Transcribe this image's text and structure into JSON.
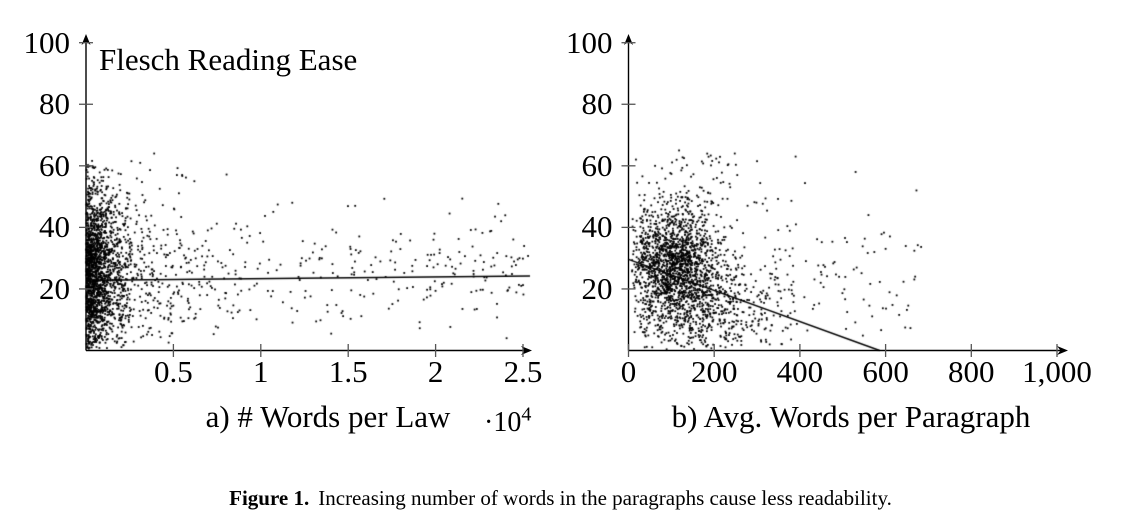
{
  "page": {
    "background": "#ffffff",
    "text_color": "#000000"
  },
  "figure": {
    "caption_label": "Figure 1.",
    "caption_text": "Increasing number of words in the paragraphs cause less readability."
  },
  "chart_data": [
    {
      "type": "scatter",
      "panel": "a",
      "title": "Flesch Reading Ease",
      "xlabel": "a) # Words per Law",
      "ylabel": "Flesch Reading Ease",
      "x_axis_multiplier": {
        "base": "·10",
        "exp": "4"
      },
      "xlim": [
        0,
        25500
      ],
      "ylim": [
        0,
        100
      ],
      "grid": false,
      "legend": null,
      "x_ticks": [
        {
          "value": 5000,
          "label": "0.5"
        },
        {
          "value": 10000,
          "label": "1"
        },
        {
          "value": 15000,
          "label": "1.5"
        },
        {
          "value": 20000,
          "label": "2"
        },
        {
          "value": 25000,
          "label": "2.5"
        }
      ],
      "y_ticks": [
        {
          "value": 20,
          "label": "20"
        },
        {
          "value": 40,
          "label": "40"
        },
        {
          "value": 60,
          "label": "60"
        },
        {
          "value": 80,
          "label": "80"
        },
        {
          "value": 100,
          "label": "100"
        }
      ],
      "trend_line": {
        "x": [
          600,
          25400
        ],
        "y": [
          22.8,
          24.2
        ]
      },
      "axis_color": "#000000",
      "tick_color": "#555555",
      "marker_color": "#000000",
      "scatter_cloud": {
        "seed": 7,
        "clusters": [
          {
            "n": 1450,
            "x": {
              "dist": "exp",
              "min": 25,
              "max": 2600,
              "mean": 800
            },
            "y": {
              "dist": "norm",
              "mu": 26,
              "sigma": 14,
              "min": 0.5,
              "max": 62
            }
          },
          {
            "n": 620,
            "x": {
              "dist": "exp",
              "min": 120,
              "max": 9500,
              "mean": 2600
            },
            "y": {
              "dist": "norm",
              "mu": 24,
              "sigma": 12,
              "min": 0.5,
              "max": 57
            }
          },
          {
            "n": 270,
            "x": {
              "dist": "uni",
              "min": 1500,
              "max": 25300
            },
            "y": {
              "dist": "norm",
              "mu": 25,
              "sigma": 10,
              "min": 2,
              "max": 50
            }
          },
          {
            "n": 36,
            "x": {
              "dist": "exp",
              "min": 300,
              "max": 13000,
              "mean": 3000
            },
            "y": {
              "dist": "uni",
              "min": 42,
              "max": 61
            }
          }
        ],
        "outliers": [
          [
            3900,
            64
          ],
          [
            2600,
            61.5
          ],
          [
            1500,
            58.5
          ],
          [
            5200,
            57
          ],
          [
            6200,
            55
          ],
          [
            11800,
            48
          ],
          [
            15400,
            47
          ],
          [
            20800,
            44.5
          ],
          [
            23400,
            43.5
          ],
          [
            24800,
            30
          ],
          [
            24900,
            21
          ]
        ]
      }
    },
    {
      "type": "scatter",
      "panel": "b",
      "title": "",
      "xlabel": "b) Avg. Words per Paragraph",
      "ylabel": "Flesch Reading Ease",
      "xlim": [
        0,
        1010
      ],
      "ylim": [
        0,
        100
      ],
      "grid": false,
      "legend": null,
      "x_ticks": [
        {
          "value": 0,
          "label": "0"
        },
        {
          "value": 200,
          "label": "200"
        },
        {
          "value": 400,
          "label": "400"
        },
        {
          "value": 600,
          "label": "600"
        },
        {
          "value": 800,
          "label": "800"
        },
        {
          "value": 1000,
          "label": "1,000"
        }
      ],
      "y_ticks": [
        {
          "value": 20,
          "label": "20"
        },
        {
          "value": 40,
          "label": "40"
        },
        {
          "value": 60,
          "label": "60"
        },
        {
          "value": 80,
          "label": "80"
        },
        {
          "value": 100,
          "label": "100"
        }
      ],
      "trend_line": {
        "x": [
          0,
          586
        ],
        "y": [
          29.6,
          0
        ]
      },
      "axis_color": "#000000",
      "tick_color": "#555555",
      "marker_color": "#000000",
      "scatter_cloud": {
        "seed": 11,
        "clusters": [
          {
            "n": 1500,
            "x": {
              "dist": "norm",
              "mu": 105,
              "sigma": 52,
              "min": 8,
              "max": 330
            },
            "y": {
              "dist": "norm",
              "mu": 29,
              "sigma": 9.5,
              "min": 3,
              "max": 52
            }
          },
          {
            "n": 540,
            "x": {
              "dist": "norm",
              "mu": 175,
              "sigma": 95,
              "min": 12,
              "max": 490
            },
            "y": {
              "dist": "norm",
              "mu": 14,
              "sigma": 8,
              "min": 0.3,
              "max": 36
            }
          },
          {
            "n": 230,
            "x": {
              "dist": "exp",
              "min": 40,
              "max": 690,
              "mean": 270
            },
            "y": {
              "dist": "norm",
              "mu": 23,
              "sigma": 12,
              "min": 1,
              "max": 50
            }
          },
          {
            "n": 66,
            "x": {
              "dist": "norm",
              "mu": 150,
              "sigma": 85,
              "min": 15,
              "max": 430
            },
            "y": {
              "dist": "uni",
              "min": 47,
              "max": 64
            }
          },
          {
            "n": 26,
            "x": {
              "dist": "uni",
              "min": 470,
              "max": 680
            },
            "y": {
              "dist": "uni",
              "min": 2,
              "max": 40
            }
          }
        ],
        "outliers": [
          [
            118,
            65
          ],
          [
            248,
            64
          ],
          [
            390,
            63
          ],
          [
            300,
            61.5
          ],
          [
            62,
            60
          ],
          [
            530,
            58
          ],
          [
            560,
            44
          ],
          [
            669,
            24
          ],
          [
            672,
            52
          ]
        ]
      }
    }
  ]
}
